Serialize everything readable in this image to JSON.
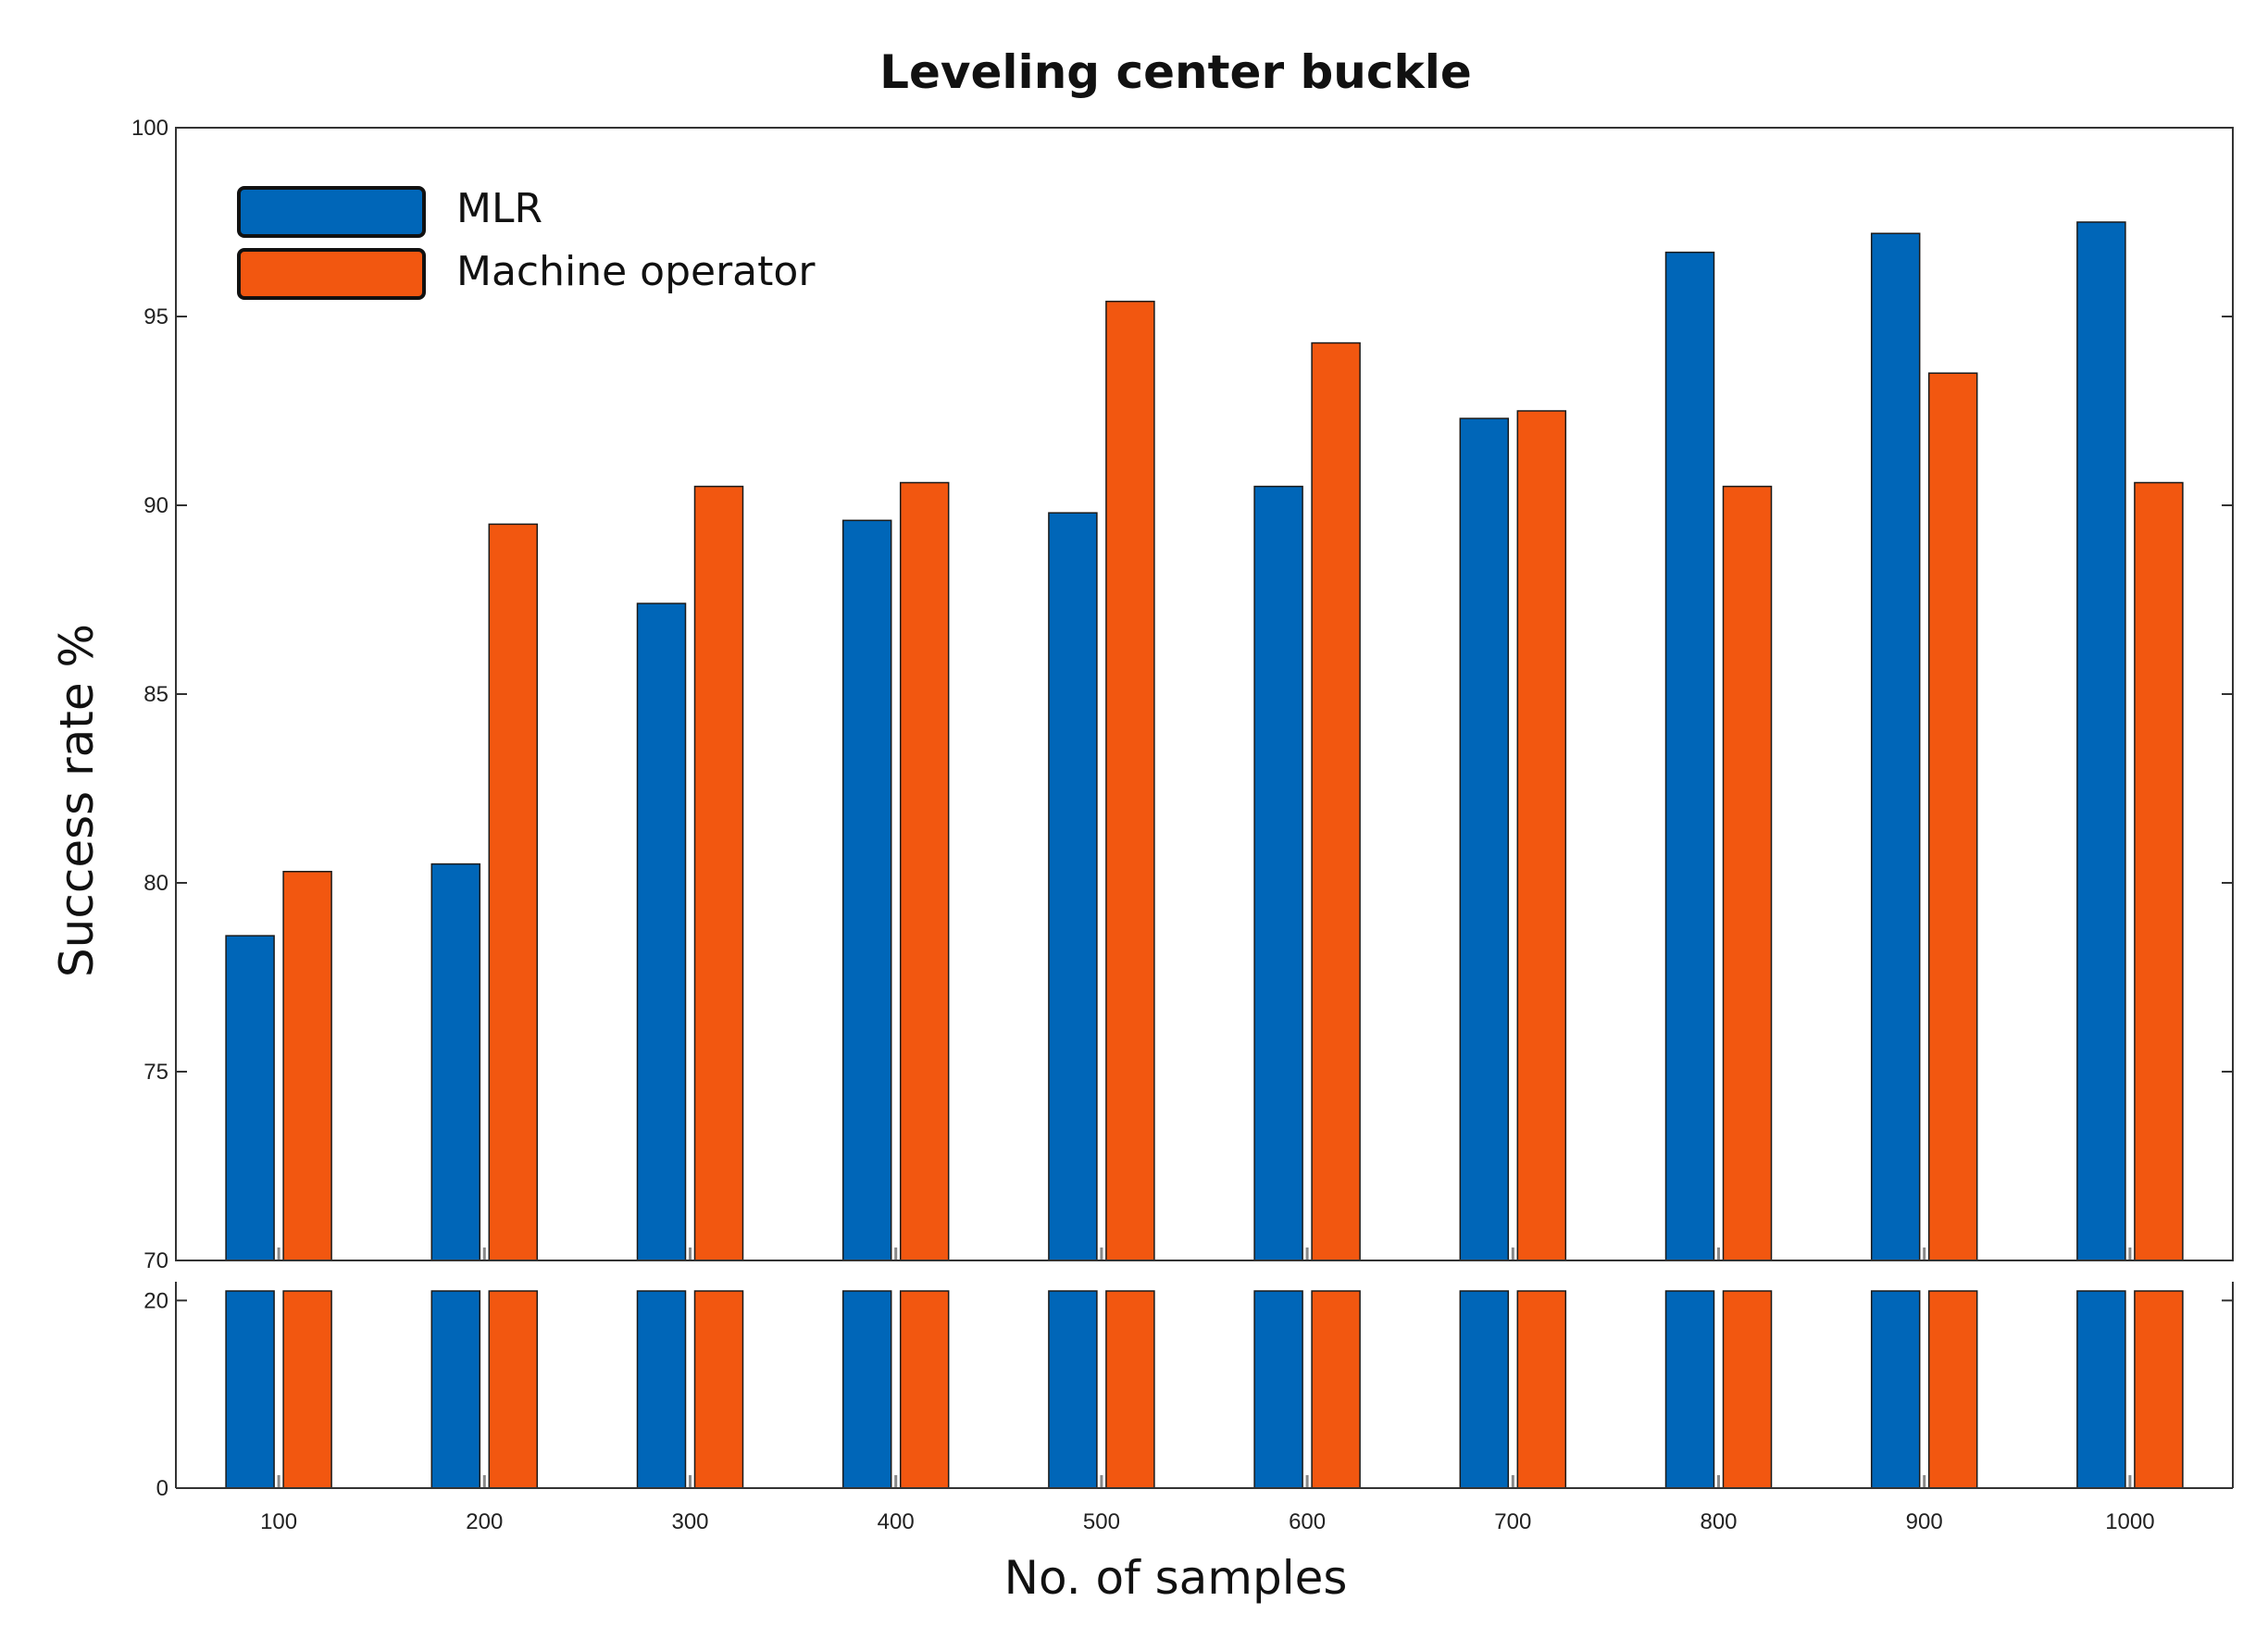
{
  "chart_data": {
    "type": "bar",
    "title": "Leveling center buckle",
    "xlabel": "No. of samples",
    "ylabel": "Success rate %",
    "categories": [
      "100",
      "200",
      "300",
      "400",
      "500",
      "600",
      "700",
      "800",
      "900",
      "1000"
    ],
    "series": [
      {
        "name": "MLR",
        "color": "#0066b8",
        "values": [
          78.6,
          80.5,
          87.4,
          89.6,
          89.8,
          90.5,
          92.3,
          96.7,
          97.2,
          97.5
        ]
      },
      {
        "name": "Machine operator",
        "color": "#f25710",
        "values": [
          80.3,
          89.5,
          90.5,
          90.6,
          95.4,
          94.3,
          92.5,
          90.5,
          93.5,
          90.6
        ]
      }
    ],
    "axis_break": true,
    "upper_ylim": [
      70,
      100
    ],
    "upper_yticks": [
      70,
      75,
      80,
      85,
      90,
      95,
      100
    ],
    "lower_ylim": [
      0,
      22
    ],
    "lower_yticks": [
      0,
      20
    ],
    "legend_position": "top-left",
    "grid": false
  }
}
